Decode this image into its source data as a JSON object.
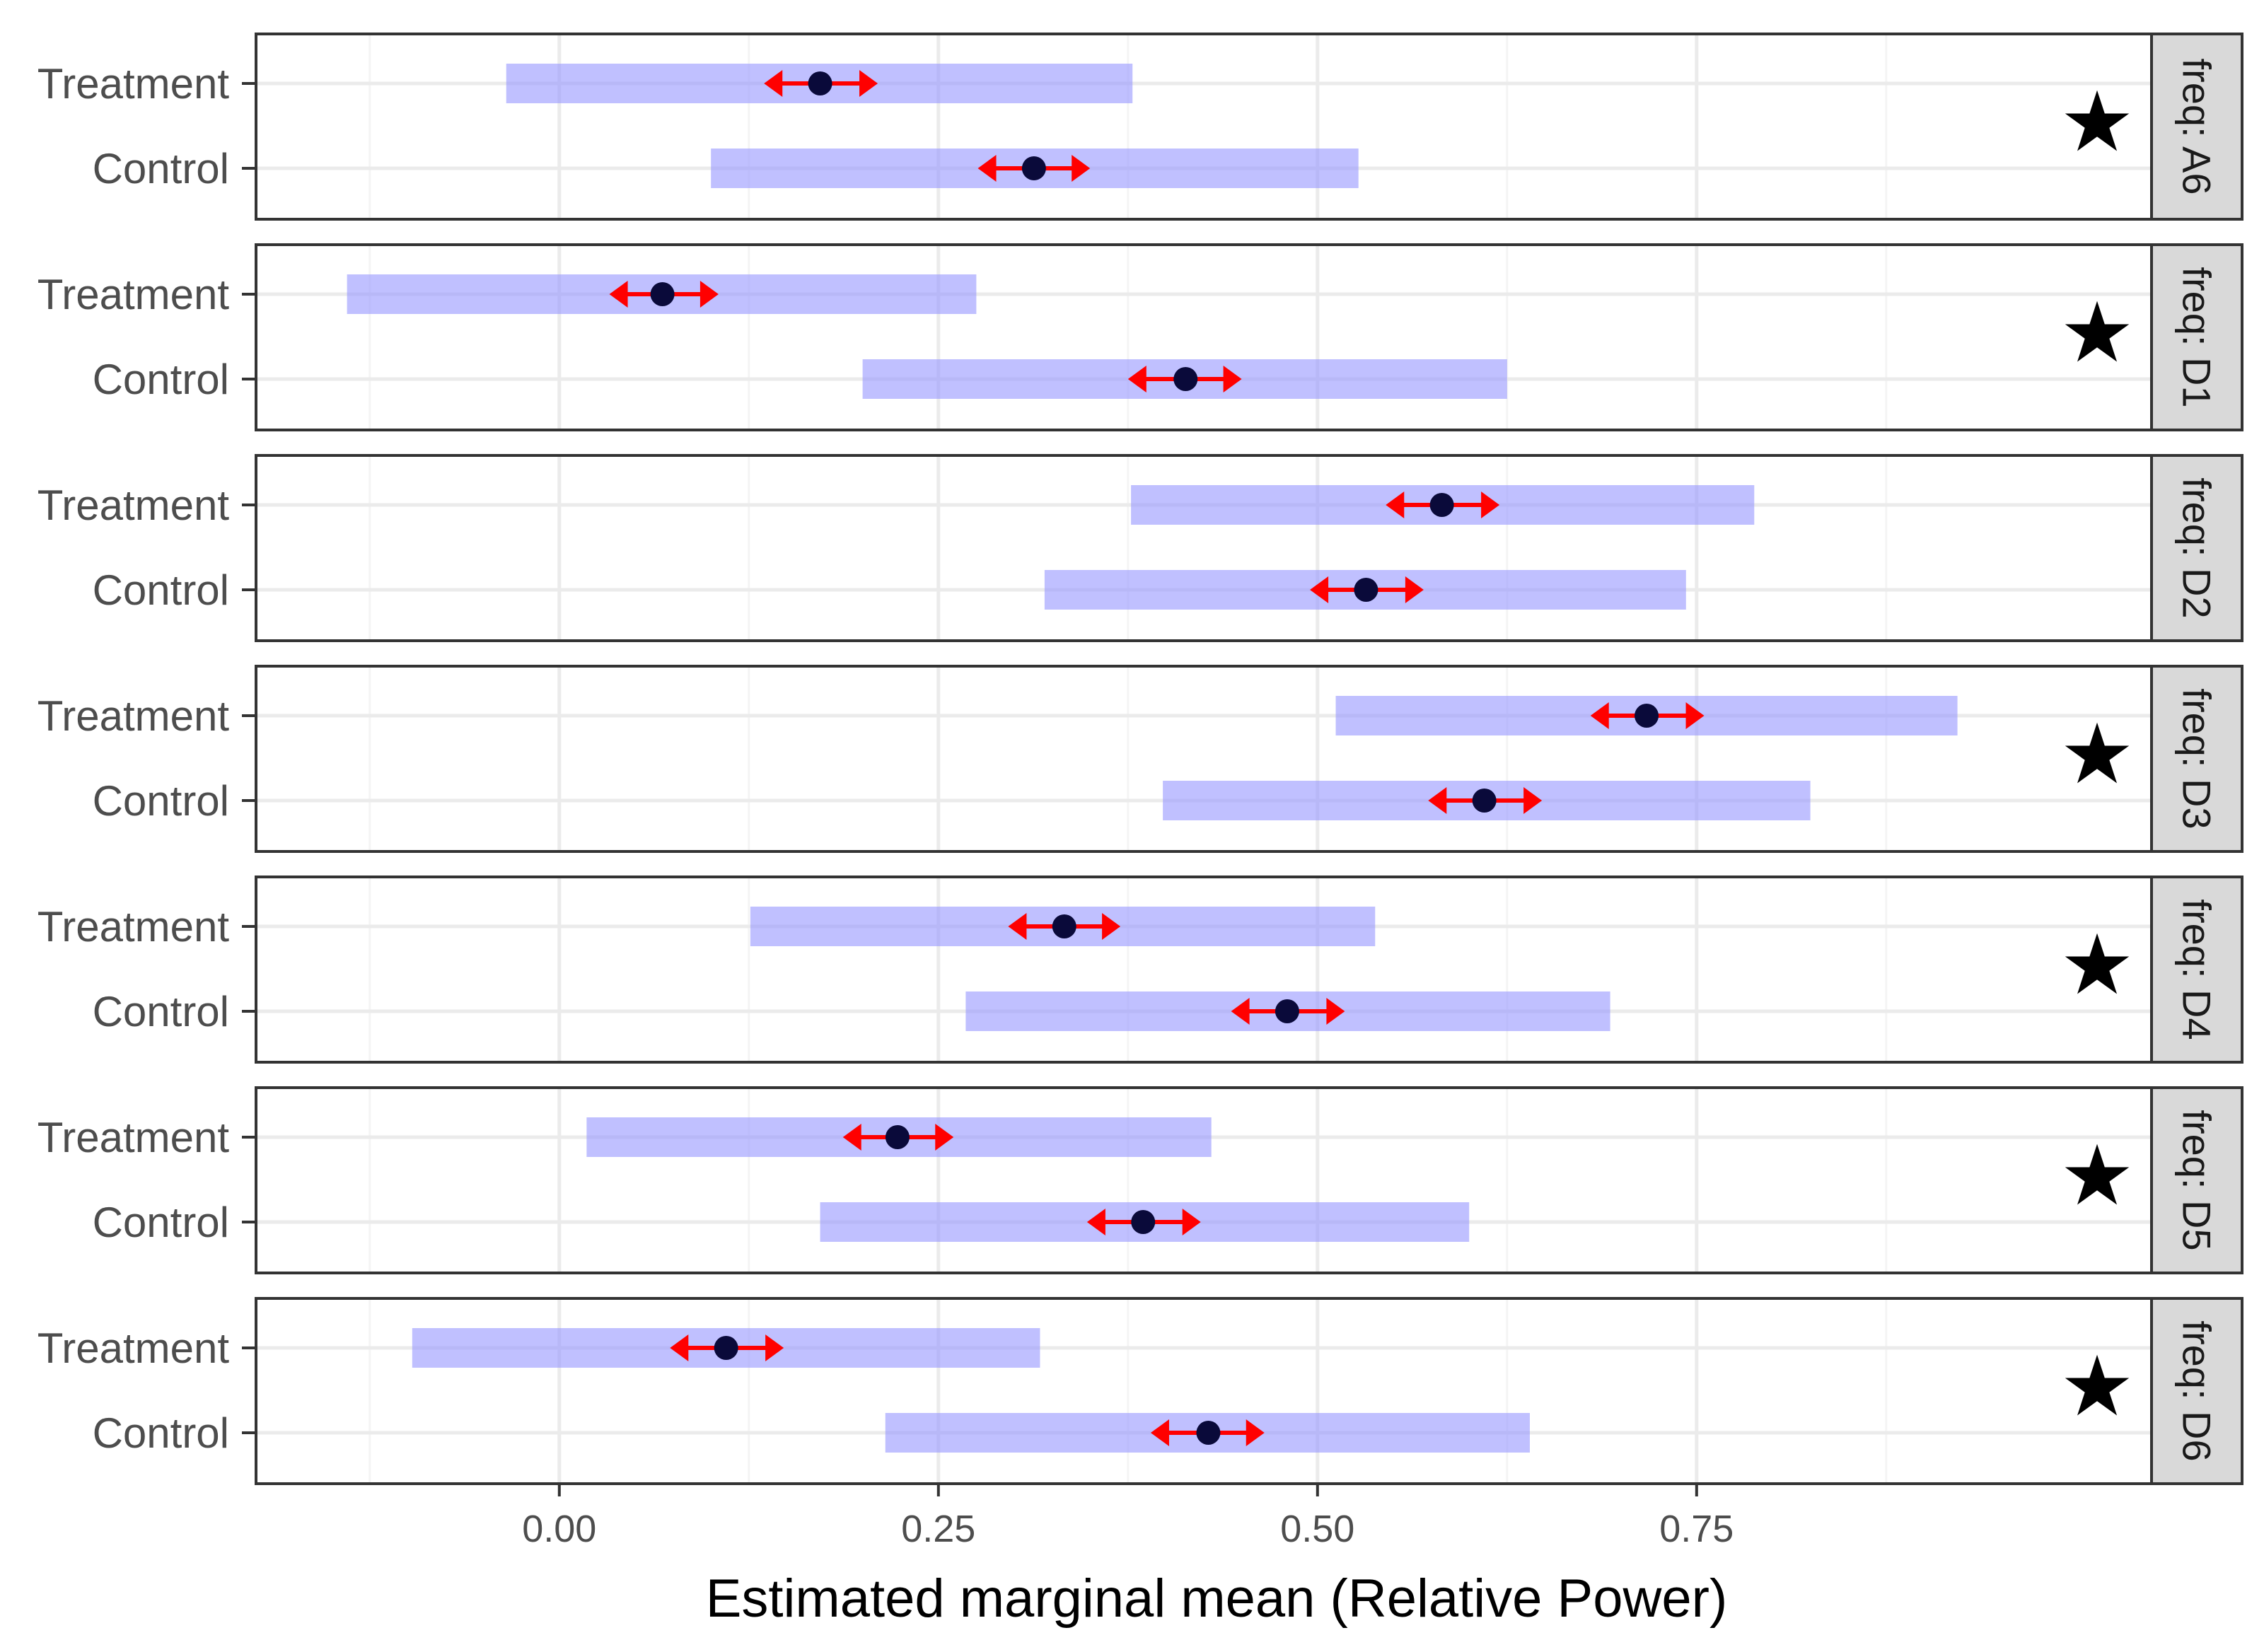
{
  "chart_data": {
    "type": "faceted-interval-plot",
    "xlabel": "Estimated marginal mean (Relative Power)",
    "xlim": [
      -0.2,
      1.05
    ],
    "x_ticks": [
      0.0,
      0.25,
      0.5,
      0.75
    ],
    "x_tick_labels": [
      "0.00",
      "0.25",
      "0.50",
      "0.75"
    ],
    "categories": [
      "Treatment",
      "Control"
    ],
    "significance_marker": "★",
    "colors": {
      "ci_band": "#9999ff",
      "comparison_arrow": "#ff0000",
      "point": "#0a0a3a",
      "panel_border": "#333333",
      "strip_fill": "#d9d9d9",
      "grid": "#ebebeb"
    },
    "facets": [
      {
        "label": "freq: A6",
        "significant": true,
        "rows": [
          {
            "group": "Treatment",
            "emmean": 0.172,
            "lower_CL": -0.035,
            "upper_CL": 0.378,
            "arrow_low": 0.135,
            "arrow_high": 0.21
          },
          {
            "group": "Control",
            "emmean": 0.313,
            "lower_CL": 0.1,
            "upper_CL": 0.527,
            "arrow_low": 0.276,
            "arrow_high": 0.35
          }
        ]
      },
      {
        "label": "freq: D1",
        "significant": true,
        "rows": [
          {
            "group": "Treatment",
            "emmean": 0.068,
            "lower_CL": -0.14,
            "upper_CL": 0.275,
            "arrow_low": 0.033,
            "arrow_high": 0.105
          },
          {
            "group": "Control",
            "emmean": 0.413,
            "lower_CL": 0.2,
            "upper_CL": 0.625,
            "arrow_low": 0.375,
            "arrow_high": 0.45
          }
        ]
      },
      {
        "label": "freq: D2",
        "significant": false,
        "rows": [
          {
            "group": "Treatment",
            "emmean": 0.582,
            "lower_CL": 0.377,
            "upper_CL": 0.788,
            "arrow_low": 0.545,
            "arrow_high": 0.62
          },
          {
            "group": "Control",
            "emmean": 0.532,
            "lower_CL": 0.32,
            "upper_CL": 0.743,
            "arrow_low": 0.495,
            "arrow_high": 0.57
          }
        ]
      },
      {
        "label": "freq: D3",
        "significant": true,
        "rows": [
          {
            "group": "Treatment",
            "emmean": 0.717,
            "lower_CL": 0.512,
            "upper_CL": 0.922,
            "arrow_low": 0.68,
            "arrow_high": 0.755
          },
          {
            "group": "Control",
            "emmean": 0.61,
            "lower_CL": 0.398,
            "upper_CL": 0.825,
            "arrow_low": 0.573,
            "arrow_high": 0.648
          }
        ]
      },
      {
        "label": "freq: D4",
        "significant": true,
        "rows": [
          {
            "group": "Treatment",
            "emmean": 0.333,
            "lower_CL": 0.126,
            "upper_CL": 0.538,
            "arrow_low": 0.296,
            "arrow_high": 0.37
          },
          {
            "group": "Control",
            "emmean": 0.48,
            "lower_CL": 0.268,
            "upper_CL": 0.693,
            "arrow_low": 0.443,
            "arrow_high": 0.518
          }
        ]
      },
      {
        "label": "freq: D5",
        "significant": true,
        "rows": [
          {
            "group": "Treatment",
            "emmean": 0.223,
            "lower_CL": 0.018,
            "upper_CL": 0.43,
            "arrow_low": 0.187,
            "arrow_high": 0.26
          },
          {
            "group": "Control",
            "emmean": 0.385,
            "lower_CL": 0.172,
            "upper_CL": 0.6,
            "arrow_low": 0.348,
            "arrow_high": 0.423
          }
        ]
      },
      {
        "label": "freq: D6",
        "significant": true,
        "rows": [
          {
            "group": "Treatment",
            "emmean": 0.11,
            "lower_CL": -0.097,
            "upper_CL": 0.317,
            "arrow_low": 0.073,
            "arrow_high": 0.148
          },
          {
            "group": "Control",
            "emmean": 0.428,
            "lower_CL": 0.215,
            "upper_CL": 0.64,
            "arrow_low": 0.39,
            "arrow_high": 0.465
          }
        ]
      }
    ]
  }
}
